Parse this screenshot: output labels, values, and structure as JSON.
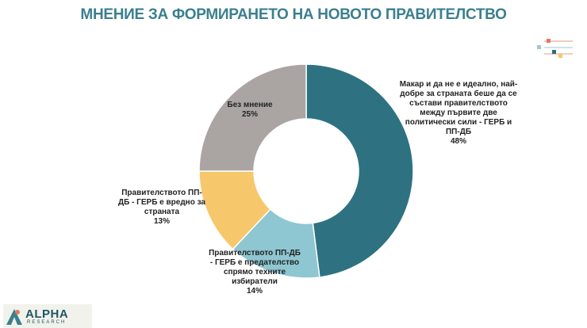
{
  "chart_data": {
    "type": "donut",
    "title": "МНЕНИЕ ЗА ФОРМИРАНЕТО НА НОВОТО ПРАВИТЕЛСТВО",
    "categories": [
      "Макар и да не е идеално, най-добре за страната беше да се състави правителството между първите две политически сили - ГЕРБ и ПП-ДБ",
      "Правителството ПП-ДБ - ГЕРБ е предателство спрямо техните избиратели",
      "Правителството ПП-ДБ - ГЕРБ е вредно за страната",
      "Без мнение"
    ],
    "values": [
      48,
      14,
      13,
      25
    ],
    "value_labels": [
      "48%",
      "14%",
      "13%",
      "25%"
    ],
    "colors": [
      "#2e7282",
      "#8ec6d2",
      "#f6c86b",
      "#aaa5a3"
    ]
  },
  "logo": {
    "name": "ALPHA",
    "subtitle": "RESEARCH"
  }
}
